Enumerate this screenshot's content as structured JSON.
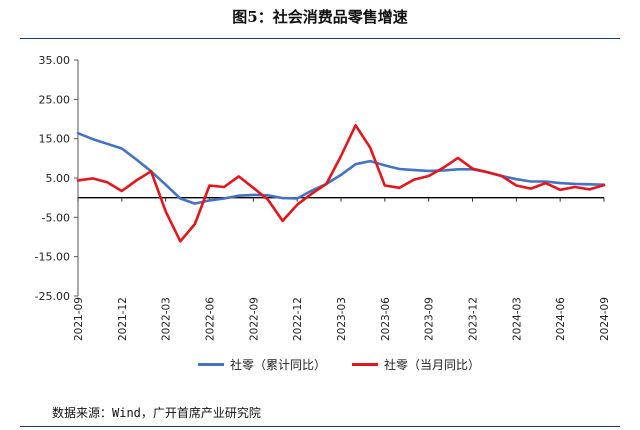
{
  "figure": {
    "title": "图5：社会消费品零售增速",
    "source": "数据来源：Wind，广开首席产业研究院"
  },
  "colors": {
    "series_cumulative": "#4472c4",
    "series_monthly": "#e3161c"
  },
  "chart_data": {
    "type": "line",
    "title": "图5：社会消费品零售增速",
    "xlabel": "",
    "ylabel": "",
    "ylim": [
      -25,
      35
    ],
    "yticks": [
      "35.00",
      "25.00",
      "15.00",
      "5.00",
      "-5.00",
      "-15.00",
      "-25.00"
    ],
    "ytick_values": [
      35,
      25,
      15,
      5,
      -5,
      -15,
      -25
    ],
    "grid": false,
    "legend": "bottom",
    "x": [
      "2021-09",
      "2021-10",
      "2021-11",
      "2021-12",
      "2022-01",
      "2022-02",
      "2022-03",
      "2022-04",
      "2022-05",
      "2022-06",
      "2022-07",
      "2022-08",
      "2022-09",
      "2022-10",
      "2022-11",
      "2022-12",
      "2023-01",
      "2023-02",
      "2023-03",
      "2023-04",
      "2023-05",
      "2023-06",
      "2023-07",
      "2023-08",
      "2023-09",
      "2023-10",
      "2023-11",
      "2023-12",
      "2024-01",
      "2024-02",
      "2024-03",
      "2024-04",
      "2024-05",
      "2024-06",
      "2024-07",
      "2024-08",
      "2024-09"
    ],
    "xtick_labels": [
      "2021-09",
      "2021-12",
      "2022-03",
      "2022-06",
      "2022-09",
      "2022-12",
      "2023-03",
      "2023-06",
      "2023-09",
      "2023-12",
      "2024-03",
      "2024-06",
      "2024-09"
    ],
    "series": [
      {
        "name": "社零（累计同比）",
        "values": [
          16.4,
          14.9,
          13.7,
          12.5,
          9.7,
          6.7,
          3.3,
          -0.2,
          -1.5,
          -0.7,
          -0.2,
          0.5,
          0.7,
          0.6,
          -0.1,
          -0.2,
          1.8,
          3.5,
          5.8,
          8.5,
          9.3,
          8.2,
          7.3,
          7.0,
          6.8,
          6.9,
          7.2,
          7.2,
          6.5,
          5.5,
          4.7,
          4.1,
          4.1,
          3.7,
          3.5,
          3.4,
          3.3
        ]
      },
      {
        "name": "社零（当月同比）",
        "values": [
          4.4,
          4.9,
          3.9,
          1.7,
          4.4,
          6.7,
          -3.5,
          -11.1,
          -6.7,
          3.1,
          2.7,
          5.4,
          2.5,
          -0.5,
          -5.9,
          -1.8,
          1.0,
          3.5,
          10.6,
          18.4,
          12.7,
          3.1,
          2.5,
          4.6,
          5.5,
          7.6,
          10.1,
          7.4,
          6.5,
          5.5,
          3.1,
          2.3,
          3.7,
          2.0,
          2.7,
          2.1,
          3.2
        ]
      }
    ]
  }
}
